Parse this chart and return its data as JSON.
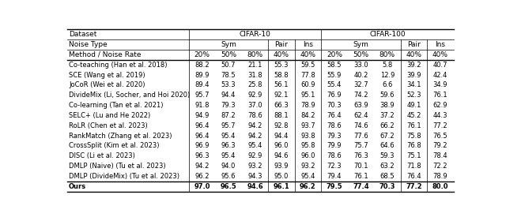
{
  "header_row1": [
    "Dataset",
    "CIFAR-10",
    "CIFAR-100"
  ],
  "header_row2": [
    "Noise Type",
    "Sym",
    "Pair",
    "Ins",
    "Sym",
    "Pair",
    "Ins"
  ],
  "header_row3": [
    "Method / Noise Rate",
    "20%",
    "50%",
    "80%",
    "40%",
    "40%",
    "20%",
    "50%",
    "80%",
    "40%",
    "40%"
  ],
  "rows": [
    [
      "Co-teaching (Han et al. 2018)",
      "88.2",
      "50.7",
      "21.1",
      "55.3",
      "59.5",
      "58.5",
      "33.0",
      "5.8",
      "39.2",
      "40.7"
    ],
    [
      "SCE (Wang et al. 2019)",
      "89.9",
      "78.5",
      "31.8",
      "58.8",
      "77.8",
      "55.9",
      "40.2",
      "12.9",
      "39.9",
      "42.4"
    ],
    [
      "JoCoR (Wei et al. 2020)",
      "89.4",
      "53.3",
      "25.8",
      "56.1",
      "60.9",
      "55.4",
      "32.7",
      "6.6",
      "34.1",
      "34.9"
    ],
    [
      "DivideMix (Li, Socher, and Hoi 2020)",
      "95.7",
      "94.4",
      "92.9",
      "92.1",
      "95.1",
      "76.9",
      "74.2",
      "59.6",
      "52.3",
      "76.1"
    ],
    [
      "Co-learning (Tan et al. 2021)",
      "91.8",
      "79.3",
      "37.0",
      "66.3",
      "78.9",
      "70.3",
      "63.9",
      "38.9",
      "49.1",
      "62.9"
    ],
    [
      "SELC+ (Lu and He 2022)",
      "94.9",
      "87.2",
      "78.6",
      "88.1",
      "84.2",
      "76.4",
      "62.4",
      "37.2",
      "45.2",
      "44.3"
    ],
    [
      "RoLR (Chen et al. 2023)",
      "96.4",
      "95.7",
      "94.2",
      "92.8",
      "93.7",
      "78.6",
      "74.6",
      "66.2",
      "76.1",
      "77.2"
    ],
    [
      "RankMatch (Zhang et al. 2023)",
      "96.4",
      "95.4",
      "94.2",
      "94.4",
      "93.8",
      "79.3",
      "77.6",
      "67.2",
      "75.8",
      "76.5"
    ],
    [
      "CrossSplit (Kim et al. 2023)",
      "96.9",
      "96.3",
      "95.4",
      "96.0",
      "95.8",
      "79.9",
      "75.7",
      "64.6",
      "76.8",
      "79.2"
    ],
    [
      "DISC (Li et al. 2023)",
      "96.3",
      "95.4",
      "92.9",
      "94.6",
      "96.0",
      "78.6",
      "76.3",
      "59.3",
      "75.1",
      "78.4"
    ],
    [
      "DMLP (Naive) (Tu et al. 2023)",
      "94.2",
      "94.0",
      "93.2",
      "93.9",
      "93.2",
      "72.3",
      "70.1",
      "63.2",
      "71.8",
      "72.2"
    ],
    [
      "DMLP (DivideMix) (Tu et al. 2023)",
      "96.2",
      "95.6",
      "94.3",
      "95.0",
      "95.4",
      "79.4",
      "76.1",
      "68.5",
      "76.4",
      "78.9"
    ]
  ],
  "ours_row": [
    "Ours",
    "97.0",
    "96.5",
    "94.6",
    "96.1",
    "96.2",
    "79.5",
    "77.4",
    "70.3",
    "77.2",
    "80.0"
  ],
  "header_fs": 6.5,
  "data_fs": 6.0,
  "bold_fs": 6.0
}
